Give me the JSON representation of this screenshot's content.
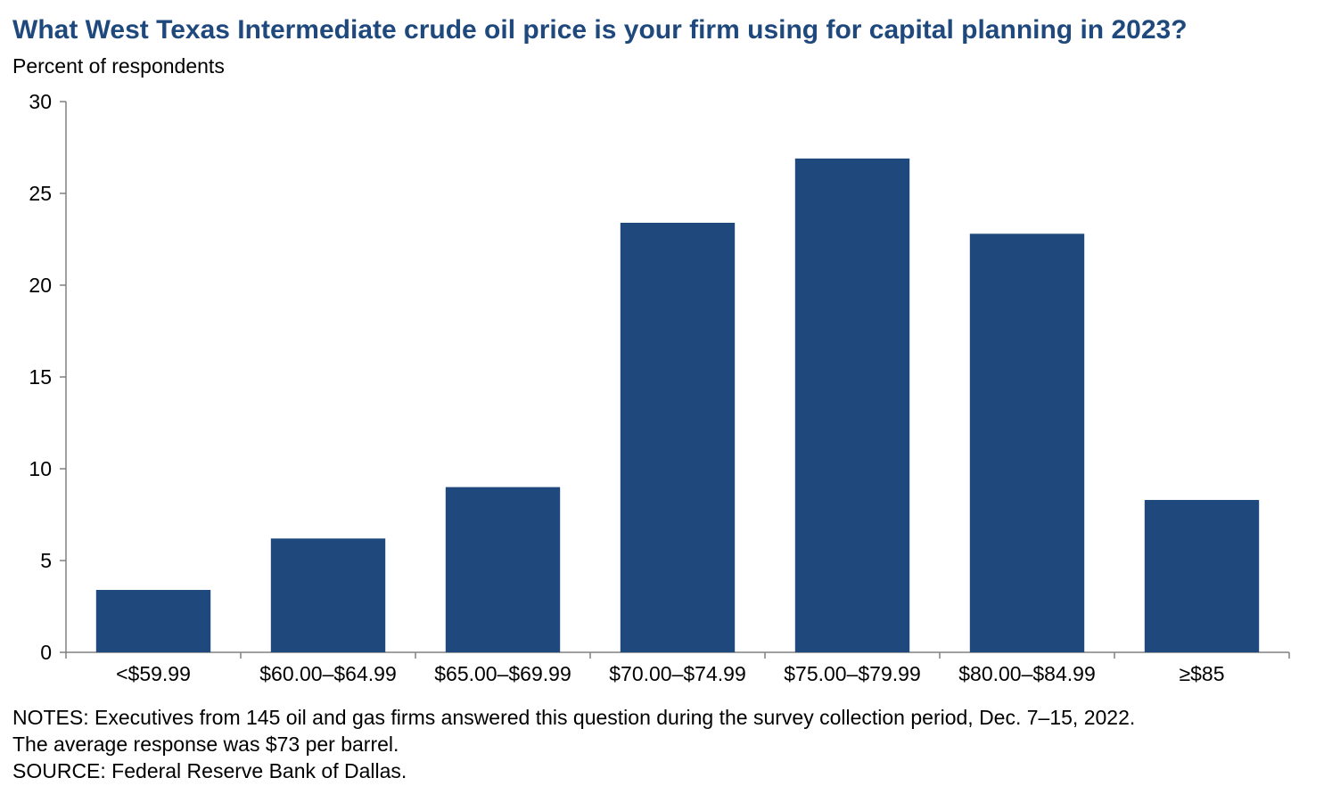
{
  "title": "What West Texas Intermediate crude oil price is your firm using for capital planning in 2023?",
  "subtitle": "Percent of respondents",
  "notes": {
    "line1": "NOTES: Executives from 145 oil and gas firms answered this question during the survey collection period, Dec. 7–15, 2022.",
    "line2": "The average response was $73 per barrel.",
    "line3": "SOURCE: Federal Reserve Bank of Dallas."
  },
  "colors": {
    "title": "#1f497d",
    "bar": "#1f497d",
    "axis": "#808080"
  },
  "chart_data": {
    "type": "bar",
    "title": "What West Texas Intermediate crude oil price is your firm using for capital planning in 2023?",
    "ylabel": "Percent of respondents",
    "xlabel": "",
    "categories": [
      "<$59.99",
      "$60.00–$64.99",
      "$65.00–$69.99",
      "$70.00–$74.99",
      "$75.00–$79.99",
      "$80.00–$84.99",
      "≥$85"
    ],
    "values": [
      3.4,
      6.2,
      9.0,
      23.4,
      26.9,
      22.8,
      8.3
    ],
    "ylim": [
      0,
      30
    ],
    "yticks": [
      0,
      5,
      10,
      15,
      20,
      25,
      30
    ],
    "grid": false,
    "legend": "none"
  }
}
